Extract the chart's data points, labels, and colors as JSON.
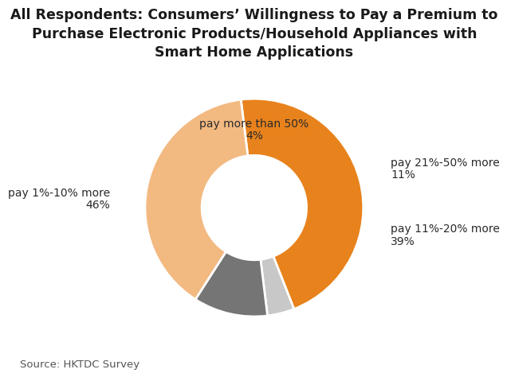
{
  "title": "All Respondents: Consumers’ Willingness to Pay a Premium to\nPurchase Electronic Products/Household Appliances with\nSmart Home Applications",
  "slices": [
    46,
    4,
    11,
    39
  ],
  "label_names": [
    "pay 1%-10% more",
    "pay more than 50%",
    "pay 21%-50% more",
    "pay 11%-20% more"
  ],
  "percentages": [
    "46%",
    "4%",
    "11%",
    "39%"
  ],
  "colors": [
    "#E8821C",
    "#C8C8C8",
    "#757575",
    "#F2B981"
  ],
  "source_text": "Source: HKTDC Survey",
  "background_color": "#ffffff",
  "wedge_edge_color": "#ffffff",
  "title_fontsize": 12.5,
  "label_fontsize": 10,
  "source_fontsize": 9.5,
  "label_positions": [
    [
      -1.32,
      0.08,
      "right",
      "center"
    ],
    [
      0.0,
      0.72,
      "center",
      "bottom"
    ],
    [
      1.25,
      0.36,
      "left",
      "center"
    ],
    [
      1.25,
      -0.25,
      "left",
      "center"
    ]
  ]
}
